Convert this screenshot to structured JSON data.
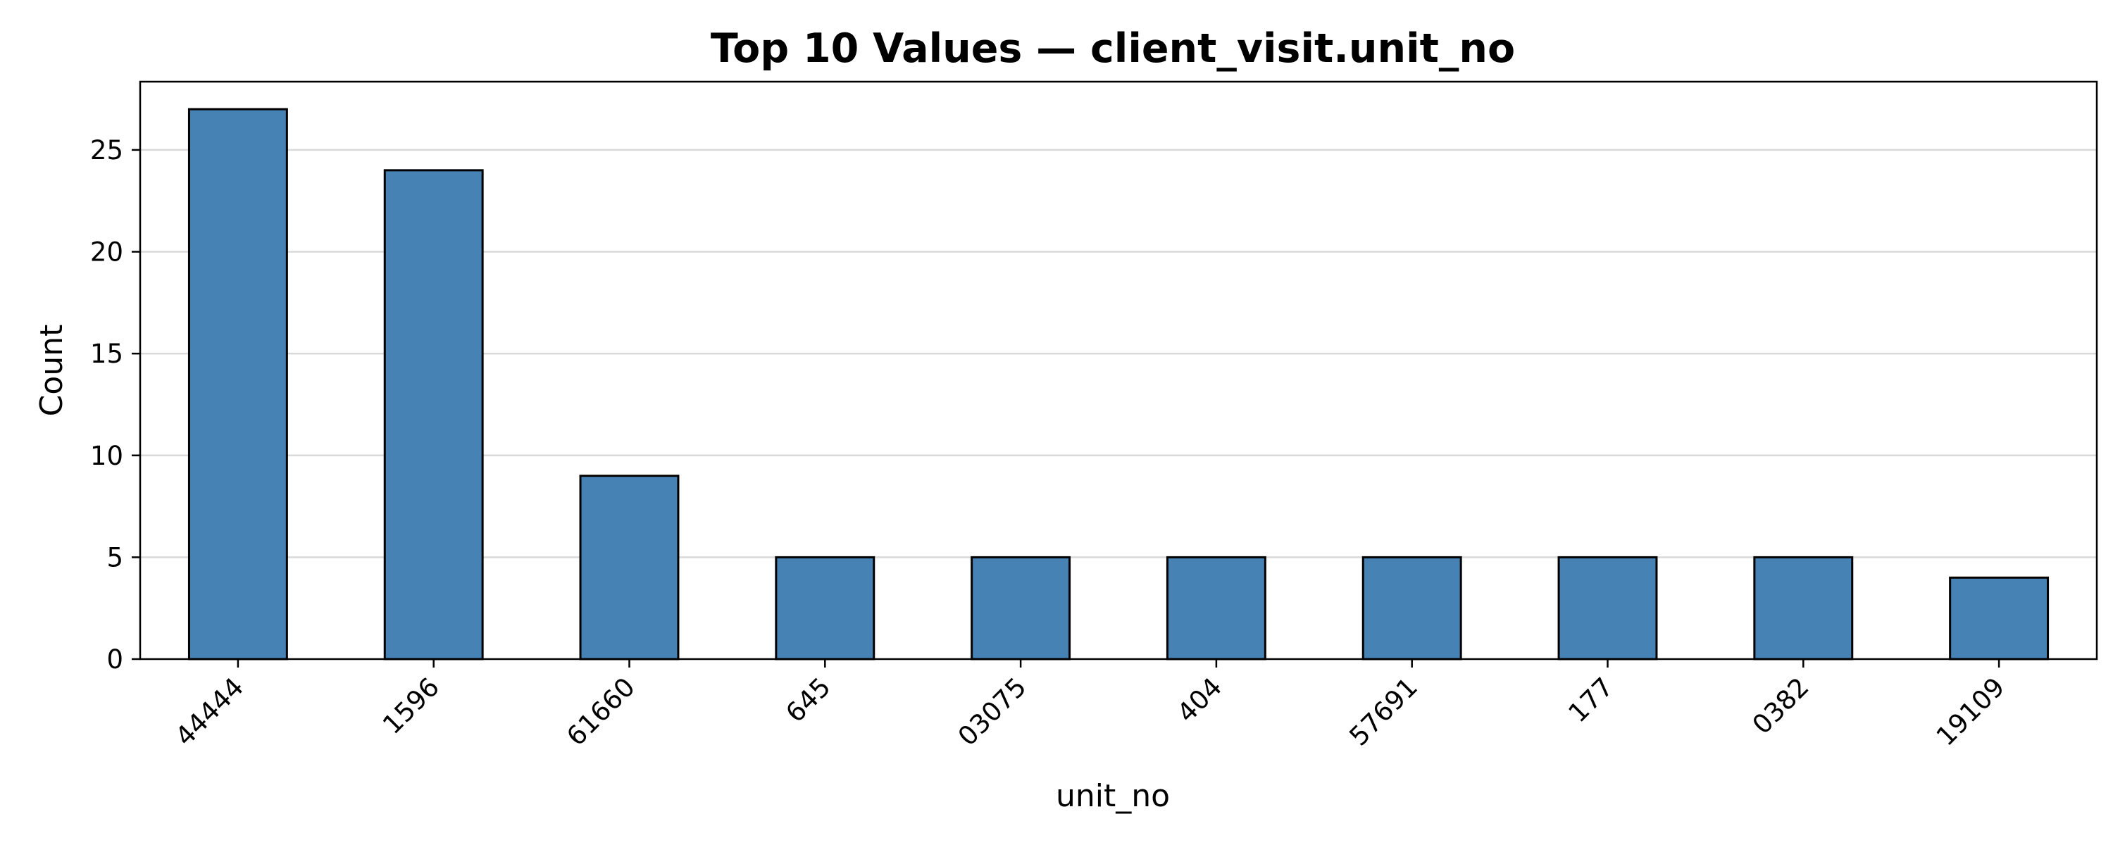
{
  "chart_data": {
    "type": "bar",
    "title": "Top 10 Values — client_visit.unit_no",
    "xlabel": "unit_no",
    "ylabel": "Count",
    "categories": [
      "44444",
      "1596",
      "61660",
      "645",
      "03075",
      "404",
      "57691",
      "177",
      "0382",
      "19109"
    ],
    "values": [
      27,
      24,
      9,
      5,
      5,
      5,
      5,
      5,
      5,
      4
    ],
    "ylim": [
      0,
      28.35
    ],
    "yticks": [
      "0",
      "5",
      "10",
      "15",
      "20",
      "25"
    ],
    "grid": "horizontal",
    "bar_color": "#4682b4",
    "edge_color": "#000000",
    "grid_color": "#d9d9d9"
  }
}
